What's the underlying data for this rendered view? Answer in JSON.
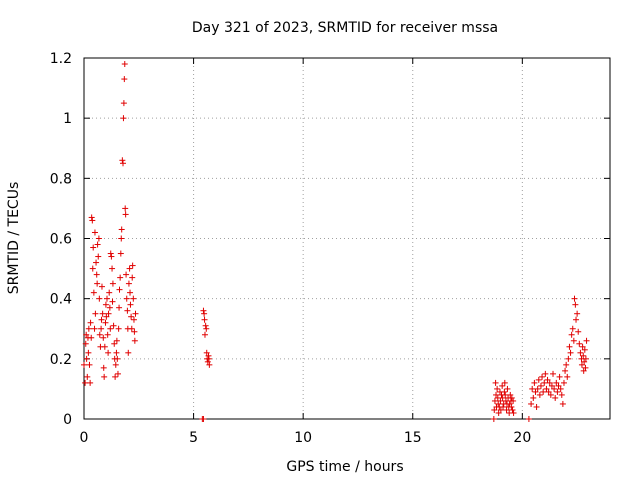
{
  "chart_data": {
    "type": "scatter",
    "title": "Day 321 of 2023, SRMTID for receiver mssa",
    "xlabel": "GPS time / hours",
    "ylabel": "SRMTID / TECUs",
    "xlim": [
      0,
      24.0
    ],
    "ylim": [
      0,
      1.2
    ],
    "xticks": [
      0,
      5,
      10,
      15,
      20
    ],
    "xtick_labels": [
      "0",
      "5",
      "10",
      "15",
      "20"
    ],
    "yticks": [
      0,
      0.2,
      0.4,
      0.6,
      0.8,
      1,
      1.2
    ],
    "ytick_labels": [
      "0",
      "0.2",
      "0.4",
      "0.6",
      "0.8",
      "1",
      "1.2"
    ],
    "grid": true,
    "marker": "+",
    "color": "#e00000",
    "series": [
      {
        "name": "SRMTID",
        "points": [
          [
            0.0,
            0.18
          ],
          [
            0.05,
            0.12
          ],
          [
            0.08,
            0.25
          ],
          [
            0.1,
            0.28
          ],
          [
            0.12,
            0.2
          ],
          [
            0.15,
            0.14
          ],
          [
            0.18,
            0.27
          ],
          [
            0.2,
            0.22
          ],
          [
            0.22,
            0.3
          ],
          [
            0.25,
            0.18
          ],
          [
            0.28,
            0.12
          ],
          [
            0.3,
            0.32
          ],
          [
            0.33,
            0.27
          ],
          [
            0.35,
            0.67
          ],
          [
            0.38,
            0.66
          ],
          [
            0.4,
            0.5
          ],
          [
            0.42,
            0.57
          ],
          [
            0.45,
            0.42
          ],
          [
            0.48,
            0.3
          ],
          [
            0.5,
            0.62
          ],
          [
            0.52,
            0.35
          ],
          [
            0.55,
            0.52
          ],
          [
            0.58,
            0.48
          ],
          [
            0.6,
            0.45
          ],
          [
            0.62,
            0.58
          ],
          [
            0.65,
            0.54
          ],
          [
            0.68,
            0.6
          ],
          [
            0.7,
            0.4
          ],
          [
            0.72,
            0.28
          ],
          [
            0.75,
            0.24
          ],
          [
            0.78,
            0.3
          ],
          [
            0.8,
            0.33
          ],
          [
            0.82,
            0.44
          ],
          [
            0.85,
            0.35
          ],
          [
            0.88,
            0.27
          ],
          [
            0.9,
            0.17
          ],
          [
            0.92,
            0.14
          ],
          [
            0.95,
            0.24
          ],
          [
            0.98,
            0.32
          ],
          [
            1.0,
            0.38
          ],
          [
            1.02,
            0.34
          ],
          [
            1.05,
            0.4
          ],
          [
            1.08,
            0.28
          ],
          [
            1.1,
            0.22
          ],
          [
            1.12,
            0.35
          ],
          [
            1.15,
            0.42
          ],
          [
            1.18,
            0.37
          ],
          [
            1.2,
            0.3
          ],
          [
            1.22,
            0.55
          ],
          [
            1.25,
            0.54
          ],
          [
            1.28,
            0.5
          ],
          [
            1.3,
            0.39
          ],
          [
            1.32,
            0.45
          ],
          [
            1.35,
            0.31
          ],
          [
            1.38,
            0.25
          ],
          [
            1.4,
            0.2
          ],
          [
            1.42,
            0.14
          ],
          [
            1.45,
            0.18
          ],
          [
            1.48,
            0.22
          ],
          [
            1.5,
            0.26
          ],
          [
            1.52,
            0.2
          ],
          [
            1.55,
            0.15
          ],
          [
            1.58,
            0.3
          ],
          [
            1.6,
            0.37
          ],
          [
            1.62,
            0.43
          ],
          [
            1.65,
            0.47
          ],
          [
            1.68,
            0.55
          ],
          [
            1.7,
            0.6
          ],
          [
            1.72,
            0.63
          ],
          [
            1.75,
            0.86
          ],
          [
            1.78,
            0.85
          ],
          [
            1.8,
            1.0
          ],
          [
            1.82,
            1.05
          ],
          [
            1.84,
            1.13
          ],
          [
            1.86,
            1.18
          ],
          [
            1.88,
            0.7
          ],
          [
            1.9,
            0.68
          ],
          [
            1.92,
            0.48
          ],
          [
            1.95,
            0.4
          ],
          [
            1.98,
            0.36
          ],
          [
            2.0,
            0.3
          ],
          [
            2.02,
            0.22
          ],
          [
            2.05,
            0.45
          ],
          [
            2.08,
            0.5
          ],
          [
            2.1,
            0.42
          ],
          [
            2.12,
            0.38
          ],
          [
            2.15,
            0.34
          ],
          [
            2.18,
            0.3
          ],
          [
            2.2,
            0.47
          ],
          [
            2.22,
            0.51
          ],
          [
            2.25,
            0.4
          ],
          [
            2.28,
            0.33
          ],
          [
            2.3,
            0.29
          ],
          [
            2.32,
            0.26
          ],
          [
            2.35,
            0.35
          ],
          [
            5.45,
            0.36
          ],
          [
            5.48,
            0.35
          ],
          [
            5.5,
            0.33
          ],
          [
            5.52,
            0.28
          ],
          [
            5.55,
            0.31
          ],
          [
            5.58,
            0.3
          ],
          [
            5.6,
            0.22
          ],
          [
            5.62,
            0.2
          ],
          [
            5.65,
            0.19
          ],
          [
            5.68,
            0.21
          ],
          [
            5.7,
            0.2
          ],
          [
            5.72,
            0.18
          ],
          [
            5.4,
            0.0
          ],
          [
            5.45,
            0.0
          ],
          [
            18.7,
            0.0
          ],
          [
            18.72,
            0.03
          ],
          [
            18.75,
            0.06
          ],
          [
            18.78,
            0.12
          ],
          [
            18.8,
            0.08
          ],
          [
            18.82,
            0.04
          ],
          [
            18.85,
            0.1
          ],
          [
            18.88,
            0.07
          ],
          [
            18.9,
            0.05
          ],
          [
            18.92,
            0.02
          ],
          [
            18.95,
            0.04
          ],
          [
            18.98,
            0.09
          ],
          [
            19.0,
            0.06
          ],
          [
            19.02,
            0.03
          ],
          [
            19.05,
            0.08
          ],
          [
            19.08,
            0.11
          ],
          [
            19.1,
            0.07
          ],
          [
            19.12,
            0.04
          ],
          [
            19.15,
            0.05
          ],
          [
            19.18,
            0.09
          ],
          [
            19.2,
            0.12
          ],
          [
            19.22,
            0.08
          ],
          [
            19.25,
            0.06
          ],
          [
            19.28,
            0.03
          ],
          [
            19.3,
            0.05
          ],
          [
            19.32,
            0.1
          ],
          [
            19.35,
            0.07
          ],
          [
            19.38,
            0.04
          ],
          [
            19.4,
            0.02
          ],
          [
            19.42,
            0.05
          ],
          [
            19.45,
            0.08
          ],
          [
            19.48,
            0.06
          ],
          [
            19.5,
            0.04
          ],
          [
            19.52,
            0.07
          ],
          [
            19.55,
            0.03
          ],
          [
            19.58,
            0.06
          ],
          [
            19.6,
            0.02
          ],
          [
            20.3,
            0.0
          ],
          [
            20.4,
            0.05
          ],
          [
            20.45,
            0.1
          ],
          [
            20.5,
            0.07
          ],
          [
            20.55,
            0.12
          ],
          [
            20.6,
            0.09
          ],
          [
            20.65,
            0.04
          ],
          [
            20.7,
            0.1
          ],
          [
            20.75,
            0.13
          ],
          [
            20.8,
            0.08
          ],
          [
            20.85,
            0.11
          ],
          [
            20.9,
            0.14
          ],
          [
            20.95,
            0.09
          ],
          [
            21.0,
            0.12
          ],
          [
            21.05,
            0.15
          ],
          [
            21.1,
            0.1
          ],
          [
            21.15,
            0.13
          ],
          [
            21.2,
            0.09
          ],
          [
            21.25,
            0.12
          ],
          [
            21.3,
            0.08
          ],
          [
            21.35,
            0.11
          ],
          [
            21.4,
            0.15
          ],
          [
            21.45,
            0.1
          ],
          [
            21.5,
            0.07
          ],
          [
            21.55,
            0.12
          ],
          [
            21.6,
            0.09
          ],
          [
            21.65,
            0.11
          ],
          [
            21.7,
            0.14
          ],
          [
            21.75,
            0.1
          ],
          [
            21.8,
            0.08
          ],
          [
            21.85,
            0.05
          ],
          [
            21.9,
            0.12
          ],
          [
            21.95,
            0.16
          ],
          [
            22.0,
            0.18
          ],
          [
            22.05,
            0.14
          ],
          [
            22.1,
            0.2
          ],
          [
            22.15,
            0.24
          ],
          [
            22.2,
            0.22
          ],
          [
            22.25,
            0.28
          ],
          [
            22.3,
            0.3
          ],
          [
            22.35,
            0.26
          ],
          [
            22.38,
            0.4
          ],
          [
            22.42,
            0.38
          ],
          [
            22.45,
            0.33
          ],
          [
            22.5,
            0.35
          ],
          [
            22.55,
            0.29
          ],
          [
            22.6,
            0.25
          ],
          [
            22.65,
            0.22
          ],
          [
            22.7,
            0.2
          ],
          [
            22.72,
            0.18
          ],
          [
            22.75,
            0.24
          ],
          [
            22.78,
            0.21
          ],
          [
            22.8,
            0.16
          ],
          [
            22.82,
            0.19
          ],
          [
            22.85,
            0.23
          ],
          [
            22.88,
            0.17
          ],
          [
            22.9,
            0.2
          ],
          [
            22.93,
            0.26
          ]
        ]
      }
    ]
  }
}
